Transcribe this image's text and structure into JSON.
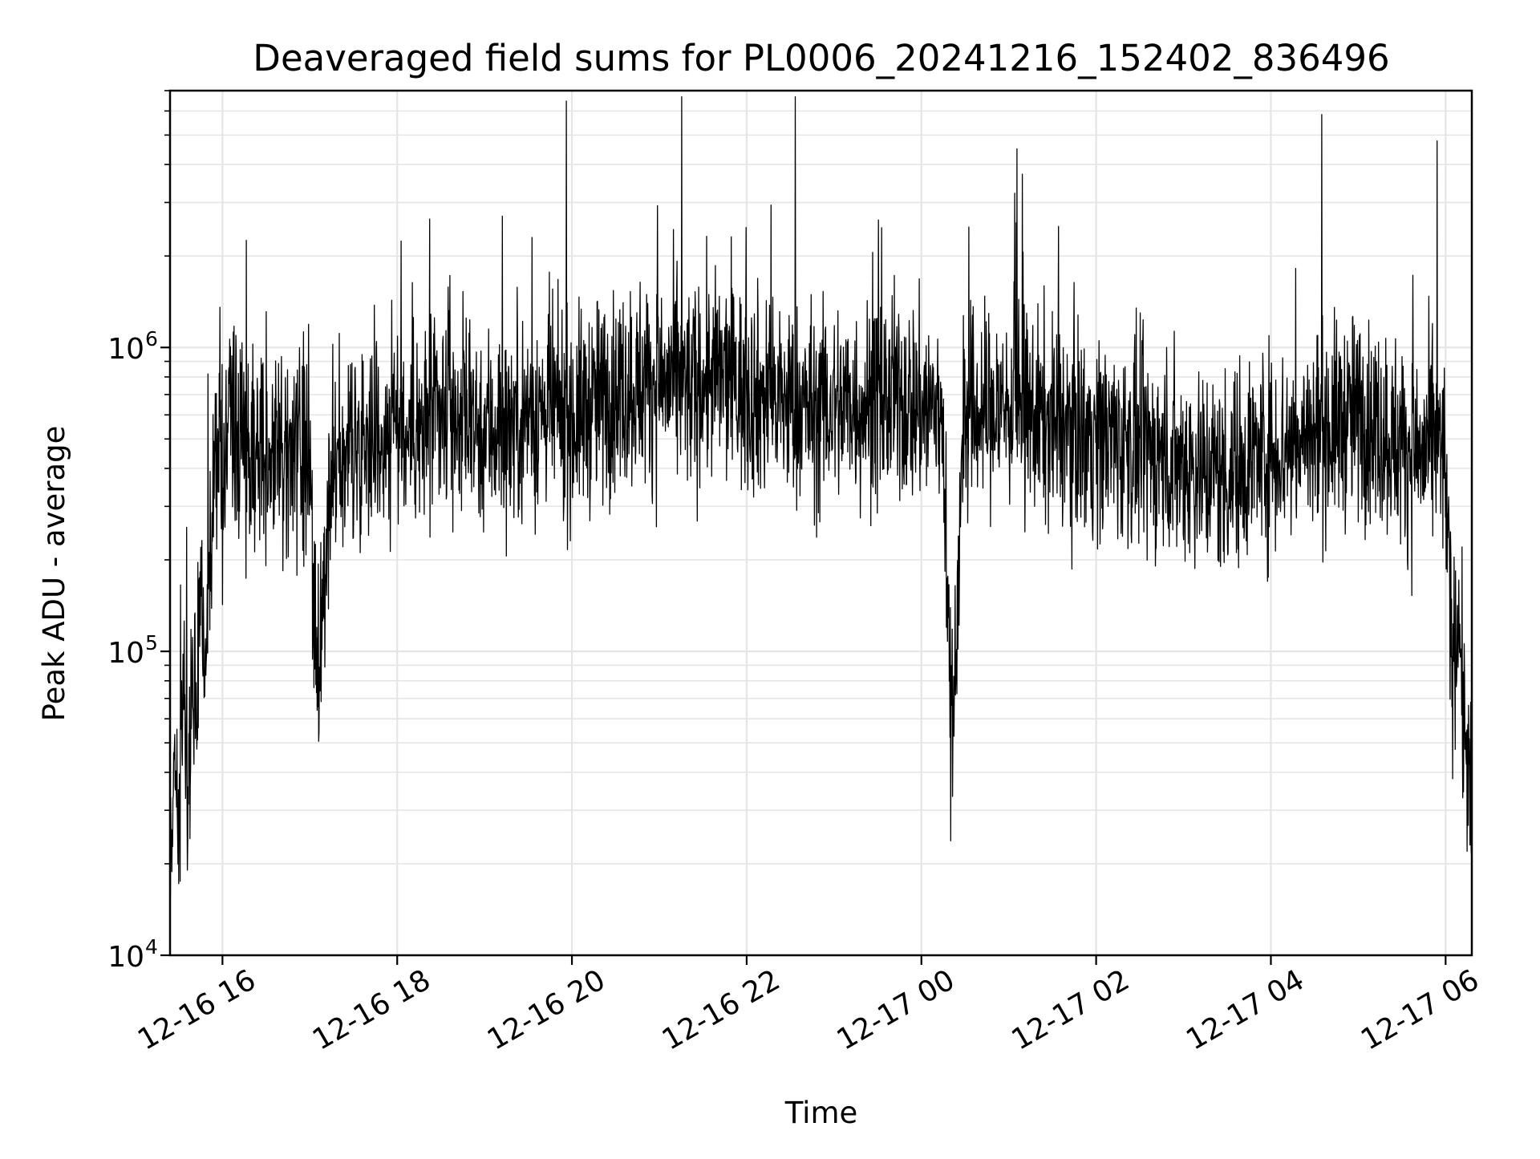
{
  "chart_data": {
    "type": "line",
    "title": "Deaveraged field sums for PL0006_20241216_152402_836496",
    "xlabel": "Time",
    "ylabel": "Peak ADU - average",
    "yscale": "log",
    "ylim": [
      10000,
      7000000
    ],
    "xlim": [
      "2024-12-16 15:24",
      "2024-12-17 06:18"
    ],
    "grid": true,
    "line_color": "#000000",
    "grid_color": "#e5e5e5",
    "x_ticks": [
      {
        "value": "2024-12-16 16:00",
        "label": "12-16 16"
      },
      {
        "value": "2024-12-16 18:00",
        "label": "12-16 18"
      },
      {
        "value": "2024-12-16 20:00",
        "label": "12-16 20"
      },
      {
        "value": "2024-12-16 22:00",
        "label": "12-16 22"
      },
      {
        "value": "2024-12-17 00:00",
        "label": "12-17 00"
      },
      {
        "value": "2024-12-17 02:00",
        "label": "12-17 02"
      },
      {
        "value": "2024-12-17 04:00",
        "label": "12-17 04"
      },
      {
        "value": "2024-12-17 06:00",
        "label": "12-17 06"
      }
    ],
    "y_ticks": [
      {
        "value": 10000,
        "base": "10",
        "exp": "4"
      },
      {
        "value": 100000,
        "base": "10",
        "exp": "5"
      },
      {
        "value": 1000000,
        "base": "10",
        "exp": "6"
      }
    ],
    "series": [
      {
        "x": [
          "2024-12-16 15:24",
          "2024-12-16 15:27",
          "2024-12-16 15:30",
          "2024-12-16 15:33",
          "2024-12-16 15:36",
          "2024-12-16 15:39",
          "2024-12-16 15:42",
          "2024-12-16 15:45",
          "2024-12-16 15:48",
          "2024-12-16 15:51",
          "2024-12-16 15:54",
          "2024-12-16 16:00",
          "2024-12-16 16:15",
          "2024-12-16 16:30",
          "2024-12-16 16:45",
          "2024-12-16 17:00",
          "2024-12-16 17:05",
          "2024-12-16 17:15",
          "2024-12-16 17:30",
          "2024-12-16 17:45",
          "2024-12-16 18:00",
          "2024-12-16 18:15",
          "2024-12-16 18:30",
          "2024-12-16 18:45",
          "2024-12-16 19:00",
          "2024-12-16 19:15",
          "2024-12-16 19:30",
          "2024-12-16 19:45",
          "2024-12-16 20:00",
          "2024-12-16 20:15",
          "2024-12-16 20:25",
          "2024-12-16 20:30",
          "2024-12-16 20:45",
          "2024-12-16 21:00",
          "2024-12-16 21:15",
          "2024-12-16 21:25",
          "2024-12-16 21:30",
          "2024-12-16 21:45",
          "2024-12-16 22:00",
          "2024-12-16 22:15",
          "2024-12-16 22:30",
          "2024-12-16 22:45",
          "2024-12-16 23:00",
          "2024-12-16 23:15",
          "2024-12-16 23:30",
          "2024-12-16 23:45",
          "2024-12-17 00:00",
          "2024-12-17 00:15",
          "2024-12-17 00:20",
          "2024-12-17 00:30",
          "2024-12-17 00:45",
          "2024-12-17 01:00",
          "2024-12-17 01:15",
          "2024-12-17 01:30",
          "2024-12-17 01:45",
          "2024-12-17 02:00",
          "2024-12-17 02:15",
          "2024-12-17 02:30",
          "2024-12-17 02:45",
          "2024-12-17 03:00",
          "2024-12-17 03:15",
          "2024-12-17 03:30",
          "2024-12-17 03:45",
          "2024-12-17 04:00",
          "2024-12-17 04:15",
          "2024-12-17 04:30",
          "2024-12-17 04:45",
          "2024-12-17 05:00",
          "2024-12-17 05:15",
          "2024-12-17 05:30",
          "2024-12-17 05:45",
          "2024-12-17 05:54",
          "2024-12-17 06:00",
          "2024-12-17 06:03",
          "2024-12-17 06:06",
          "2024-12-17 06:09",
          "2024-12-17 06:12",
          "2024-12-17 06:15",
          "2024-12-17 06:18"
        ],
        "y": [
          14000,
          50000,
          28000,
          90000,
          35000,
          110000,
          60000,
          150000,
          75000,
          190000,
          400000,
          480000,
          500000,
          470000,
          420000,
          450000,
          64000,
          380000,
          480000,
          520000,
          560000,
          520000,
          600000,
          580000,
          540000,
          560000,
          600000,
          620000,
          580000,
          650000,
          700000,
          720000,
          760000,
          780000,
          740000,
          720000,
          780000,
          800000,
          720000,
          680000,
          650000,
          620000,
          640000,
          660000,
          650000,
          680000,
          640000,
          610000,
          47000,
          600000,
          620000,
          640000,
          600000,
          560000,
          540000,
          520000,
          500000,
          460000,
          440000,
          420000,
          400000,
          380000,
          440000,
          460000,
          480000,
          520000,
          560000,
          600000,
          540000,
          480000,
          440000,
          480000,
          420000,
          120000,
          95000,
          150000,
          60000,
          45000,
          25000
        ]
      }
    ]
  }
}
